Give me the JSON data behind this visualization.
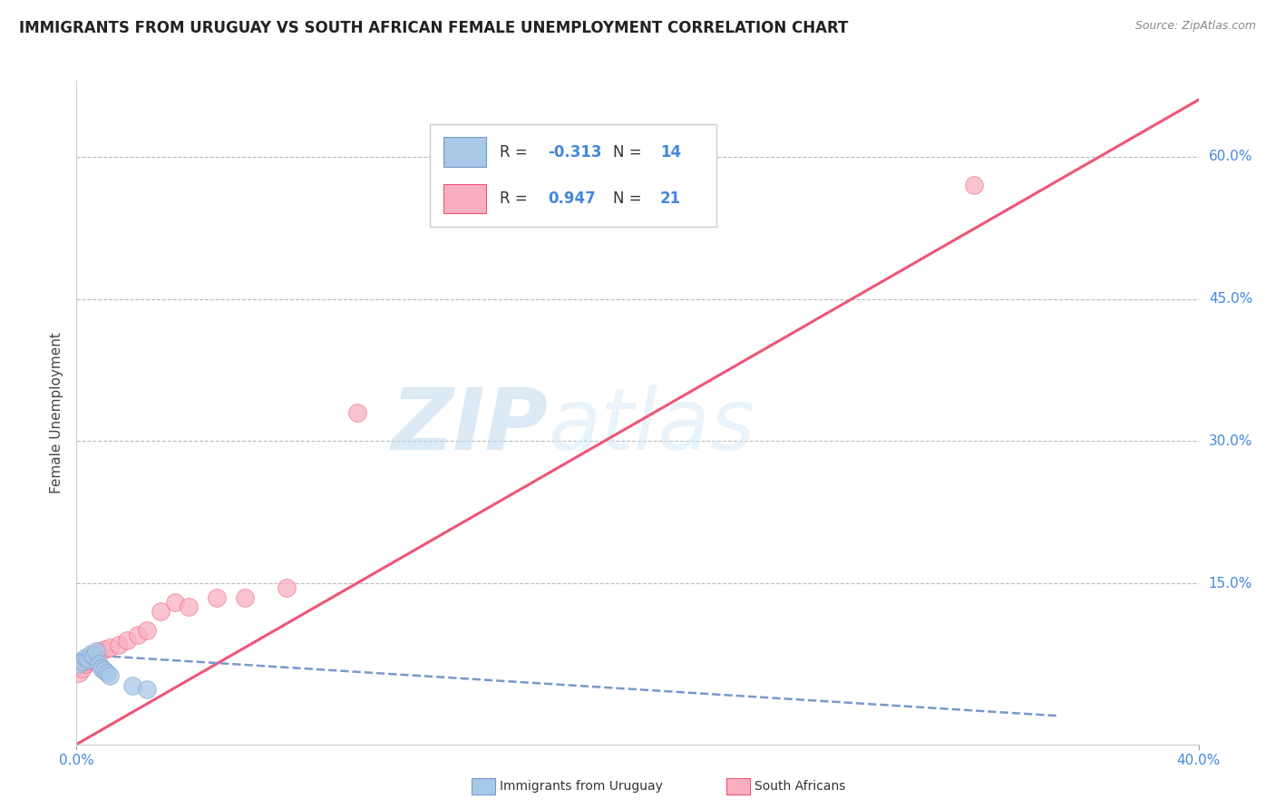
{
  "title": "IMMIGRANTS FROM URUGUAY VS SOUTH AFRICAN FEMALE UNEMPLOYMENT CORRELATION CHART",
  "source": "Source: ZipAtlas.com",
  "ylabel": "Female Unemployment",
  "watermark_zip": "ZIP",
  "watermark_atlas": "atlas",
  "xlim": [
    0.0,
    0.4
  ],
  "ylim": [
    -0.02,
    0.68
  ],
  "ytick_labels_right": [
    "15.0%",
    "30.0%",
    "45.0%",
    "60.0%"
  ],
  "ytick_vals_right": [
    0.15,
    0.3,
    0.45,
    0.6
  ],
  "color_blue": "#a8c8e8",
  "color_pink": "#f8b0c0",
  "color_blue_line": "#7799cc",
  "color_pink_line": "#ee5577",
  "color_axis_text": "#4488dd",
  "grid_color": "#bbbbbb",
  "blue_points_x": [
    0.001,
    0.002,
    0.003,
    0.004,
    0.005,
    0.006,
    0.007,
    0.008,
    0.009,
    0.01,
    0.011,
    0.012,
    0.02,
    0.025
  ],
  "blue_points_y": [
    0.065,
    0.068,
    0.072,
    0.07,
    0.075,
    0.073,
    0.078,
    0.065,
    0.06,
    0.058,
    0.055,
    0.052,
    0.042,
    0.038
  ],
  "pink_points_x": [
    0.001,
    0.002,
    0.003,
    0.004,
    0.005,
    0.006,
    0.007,
    0.008,
    0.01,
    0.012,
    0.015,
    0.018,
    0.022,
    0.025,
    0.03,
    0.035,
    0.04,
    0.05,
    0.06,
    0.075,
    0.32
  ],
  "pink_points_y": [
    0.055,
    0.06,
    0.065,
    0.068,
    0.07,
    0.072,
    0.075,
    0.078,
    0.08,
    0.082,
    0.085,
    0.09,
    0.095,
    0.1,
    0.12,
    0.13,
    0.125,
    0.135,
    0.135,
    0.145,
    0.57
  ],
  "pink_outlier_x": [
    0.1
  ],
  "pink_outlier_y": [
    0.33
  ],
  "blue_trend_x": [
    0.0,
    0.35
  ],
  "blue_trend_y": [
    0.075,
    0.01
  ],
  "pink_trend_x": [
    0.0,
    0.4
  ],
  "pink_trend_y": [
    -0.02,
    0.66
  ]
}
